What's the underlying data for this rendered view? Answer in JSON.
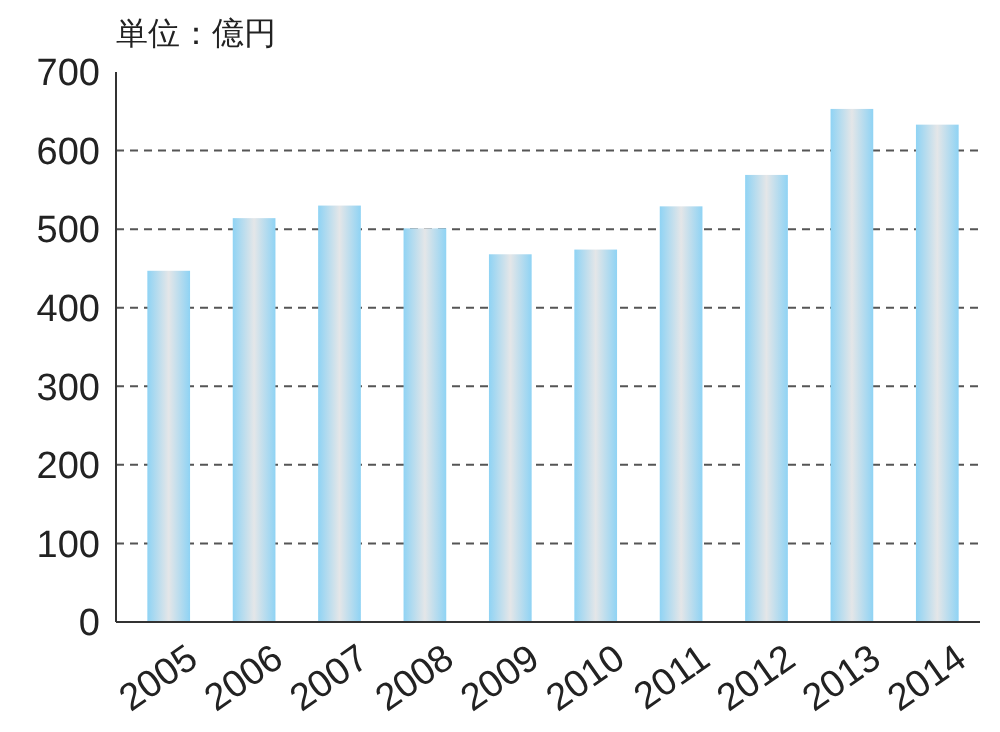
{
  "chart_data": {
    "type": "bar",
    "ylabel": "単位：億円",
    "categories": [
      "2005",
      "2006",
      "2007",
      "2008",
      "2009",
      "2010",
      "2011",
      "2012",
      "2013",
      "2014"
    ],
    "values": [
      447,
      514,
      530,
      501,
      468,
      474,
      529,
      569,
      653,
      633
    ],
    "color": "#8fd3f4",
    "ylim": [
      0,
      700
    ],
    "yticks": [
      0,
      100,
      200,
      300,
      400,
      500,
      600,
      700
    ],
    "grid": "y"
  }
}
